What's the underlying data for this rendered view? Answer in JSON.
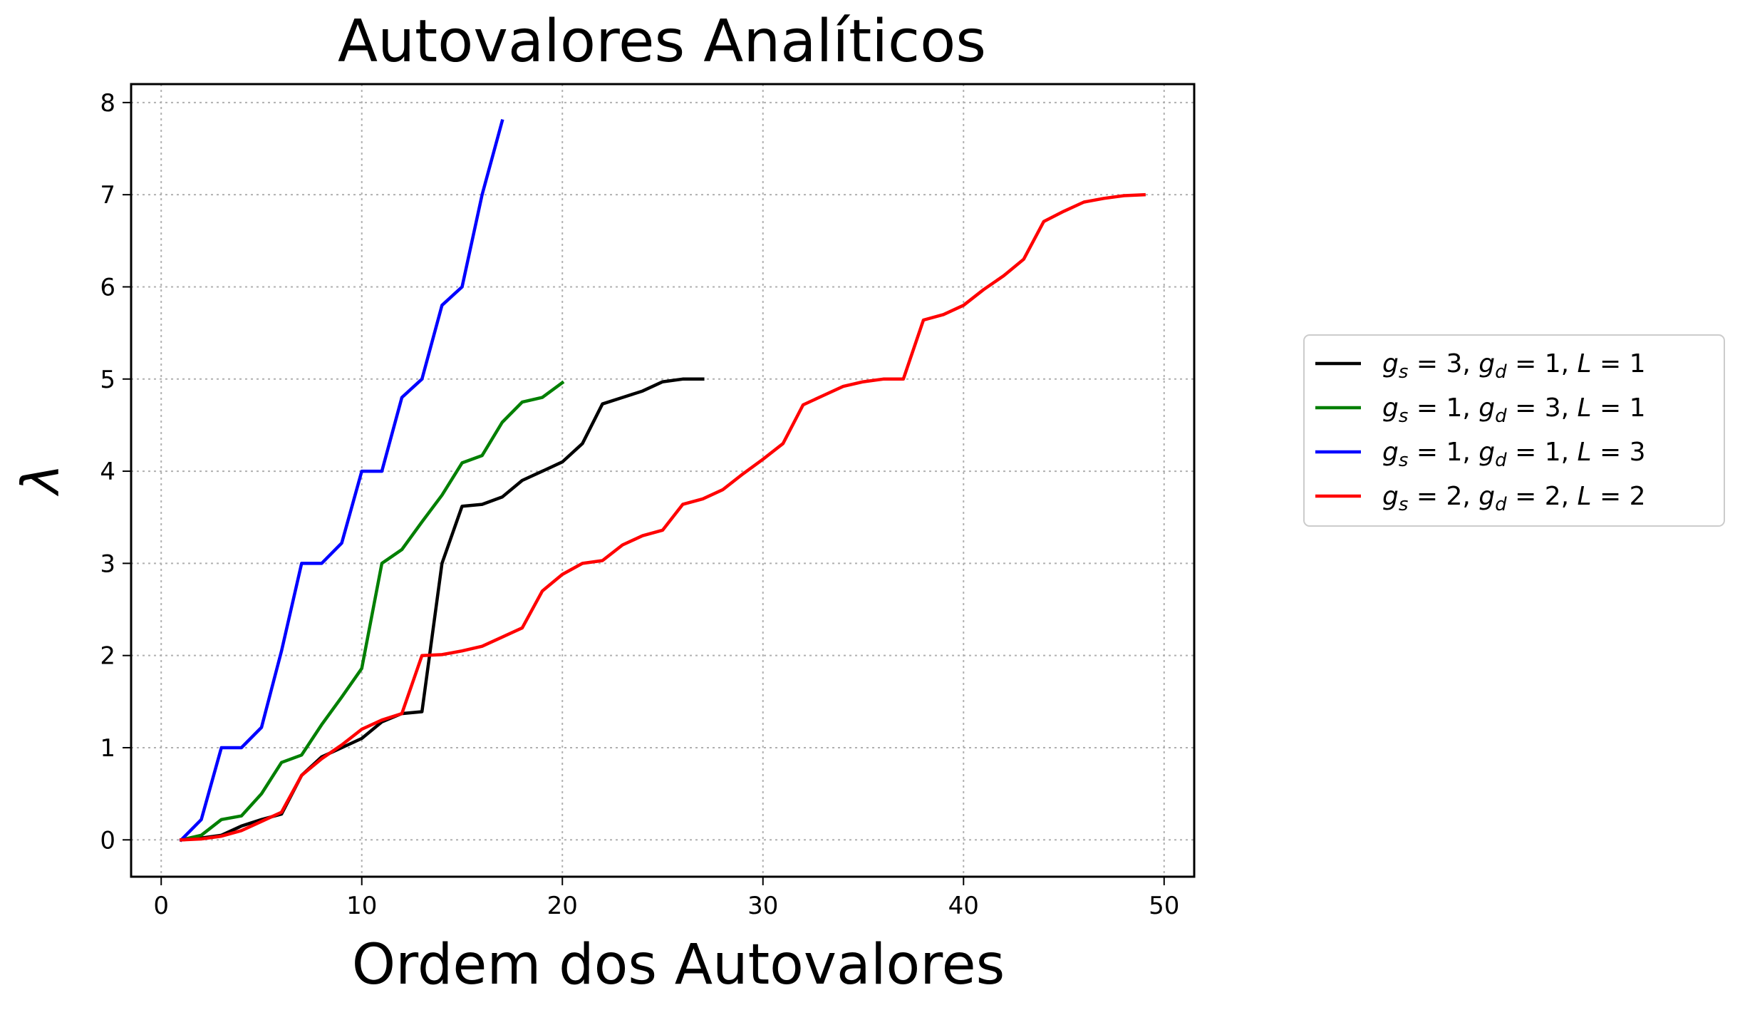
{
  "chart_data": {
    "type": "line",
    "title": "Autovalores Analíticos",
    "xlabel": "Ordem dos Autovalores",
    "ylabel": "λ",
    "xlim": [
      -1.5,
      51.5
    ],
    "ylim": [
      -0.4,
      8.2
    ],
    "xticks": [
      0,
      10,
      20,
      30,
      40,
      50
    ],
    "yticks": [
      0,
      1,
      2,
      3,
      4,
      5,
      6,
      7,
      8
    ],
    "grid": true,
    "legend_position": "right",
    "series": [
      {
        "name": "g_s = 3, g_d = 1, L = 1",
        "color": "#000000",
        "x": [
          1,
          2,
          3,
          4,
          5,
          6,
          7,
          8,
          9,
          10,
          11,
          12,
          13,
          14,
          15,
          16,
          17,
          18,
          19,
          20,
          21,
          22,
          23,
          24,
          25,
          26,
          27
        ],
        "values": [
          0,
          0.02,
          0.05,
          0.15,
          0.22,
          0.28,
          0.7,
          0.9,
          1.0,
          1.1,
          1.28,
          1.37,
          1.39,
          3.0,
          3.62,
          3.64,
          3.72,
          3.9,
          4.0,
          4.1,
          4.3,
          4.73,
          4.8,
          4.87,
          4.97,
          5.0,
          5.0
        ]
      },
      {
        "name": "g_s = 1, g_d = 3, L = 1",
        "color": "#007f00",
        "x": [
          1,
          2,
          3,
          4,
          5,
          6,
          7,
          8,
          9,
          10,
          11,
          12,
          13,
          14,
          15,
          16,
          17,
          18,
          19,
          20
        ],
        "values": [
          0,
          0.05,
          0.22,
          0.26,
          0.5,
          0.84,
          0.92,
          1.25,
          1.55,
          1.86,
          3.0,
          3.15,
          3.45,
          3.74,
          4.09,
          4.17,
          4.53,
          4.75,
          4.8,
          4.96
        ]
      },
      {
        "name": "g_s = 1, g_d = 1, L = 3",
        "color": "#0000ff",
        "x": [
          1,
          2,
          3,
          4,
          5,
          6,
          7,
          8,
          9,
          10,
          11,
          12,
          13,
          14,
          15,
          16,
          17
        ],
        "values": [
          0,
          0.22,
          1.0,
          1.0,
          1.22,
          2.05,
          3.0,
          3.0,
          3.22,
          4.0,
          4.0,
          4.8,
          5.0,
          5.8,
          6.0,
          7.0,
          7.8
        ]
      },
      {
        "name": "g_s = 2, g_d = 2, L = 2",
        "color": "#ff0000",
        "x": [
          1,
          2,
          3,
          4,
          5,
          6,
          7,
          8,
          9,
          10,
          11,
          12,
          13,
          14,
          15,
          16,
          17,
          18,
          19,
          20,
          21,
          22,
          23,
          24,
          25,
          26,
          27,
          28,
          29,
          30,
          31,
          32,
          33,
          34,
          35,
          36,
          37,
          38,
          39,
          40,
          41,
          42,
          43,
          44,
          45,
          46,
          47,
          48,
          49
        ],
        "values": [
          0,
          0.01,
          0.04,
          0.1,
          0.2,
          0.3,
          0.7,
          0.88,
          1.03,
          1.2,
          1.3,
          1.37,
          2.0,
          2.01,
          2.05,
          2.1,
          2.2,
          2.3,
          2.7,
          2.88,
          3.0,
          3.03,
          3.2,
          3.3,
          3.36,
          3.64,
          3.7,
          3.8,
          3.97,
          4.13,
          4.3,
          4.72,
          4.82,
          4.92,
          4.97,
          5.0,
          5.0,
          5.64,
          5.7,
          5.8,
          5.97,
          6.12,
          6.3,
          6.71,
          6.82,
          6.92,
          6.96,
          6.99,
          7.0
        ]
      }
    ]
  },
  "legend": {
    "entries": [
      {
        "gs": "3",
        "gd": "1",
        "L": "1",
        "color": "#000000"
      },
      {
        "gs": "1",
        "gd": "3",
        "L": "1",
        "color": "#007f00"
      },
      {
        "gs": "1",
        "gd": "1",
        "L": "3",
        "color": "#0000ff"
      },
      {
        "gs": "2",
        "gd": "2",
        "L": "2",
        "color": "#ff0000"
      }
    ]
  }
}
